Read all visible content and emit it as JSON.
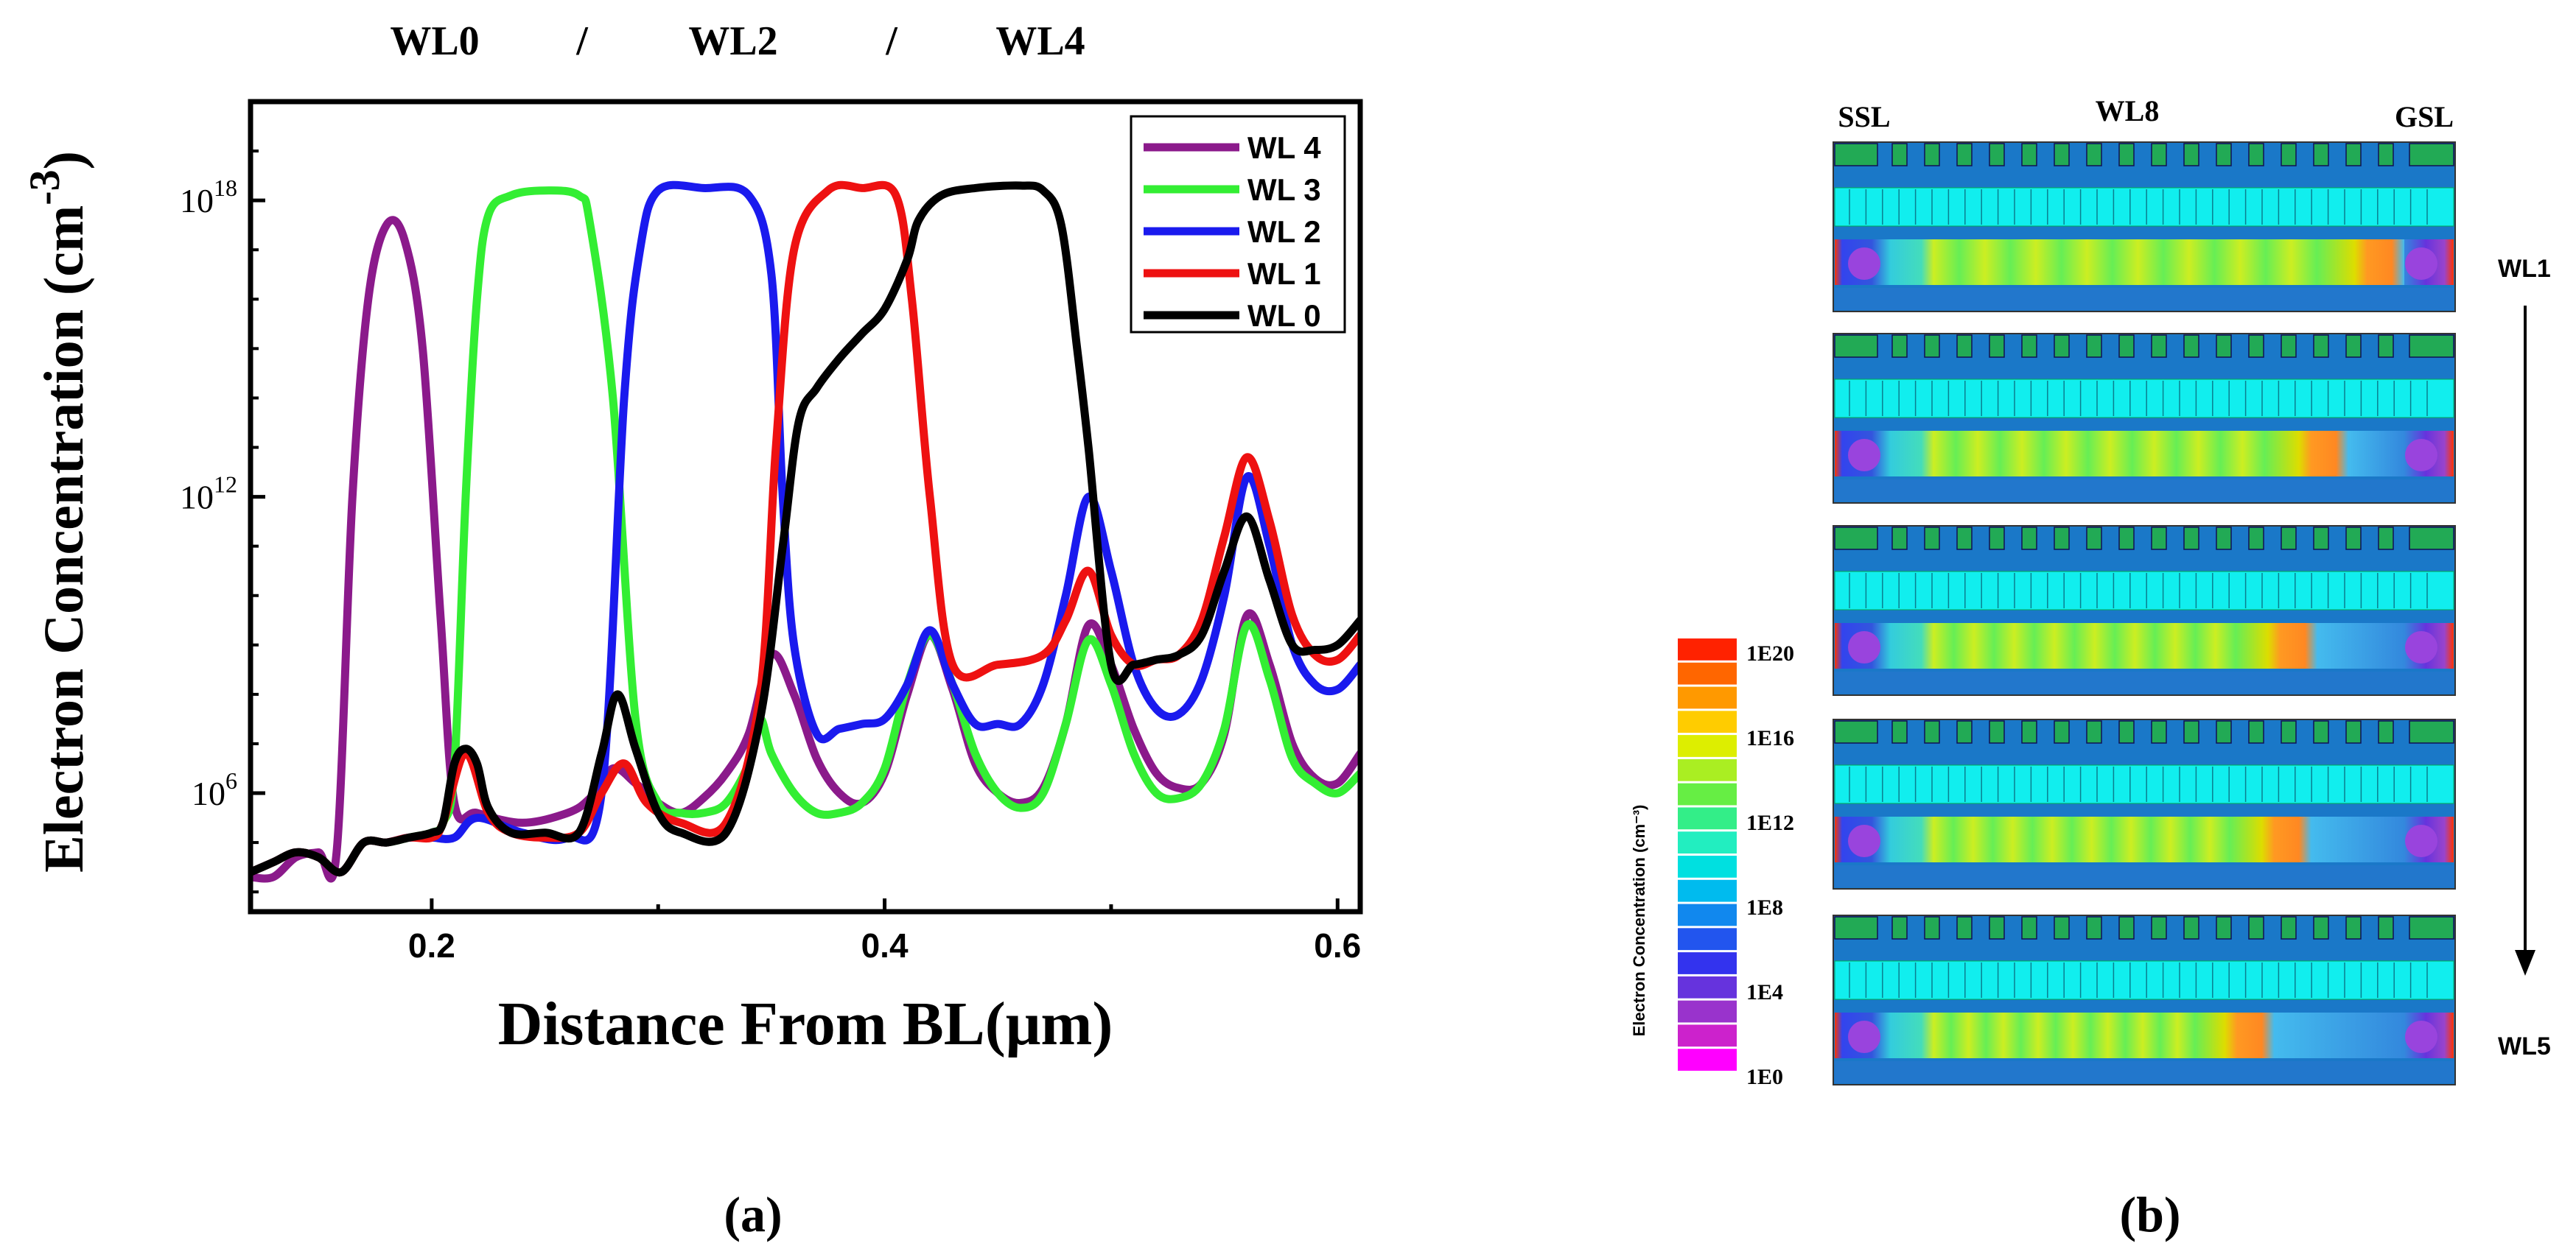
{
  "panel_a": {
    "top_labels": [
      "WL0",
      "/",
      "WL2",
      "/",
      "WL4"
    ],
    "caption": "(a)"
  },
  "panel_b": {
    "caption": "(b)",
    "labels": {
      "ssl": "SSL",
      "wl8": "WL8",
      "gsl": "GSL",
      "start": "WL1",
      "end": "WL5"
    },
    "colorbar": {
      "title": "Electron Concentration (cm⁻³)",
      "ticks": [
        "1E20",
        "1E16",
        "1E12",
        "1E8",
        "1E4",
        "1E0"
      ],
      "colors": [
        "#ff00ff",
        "#cc22cc",
        "#9933cc",
        "#6633dd",
        "#3333ee",
        "#2255ee",
        "#1188ee",
        "#00bbee",
        "#00e0e0",
        "#22eec0",
        "#33ee88",
        "#66ee44",
        "#aaee22",
        "#ddee00",
        "#ffcc00",
        "#ff9900",
        "#ff6600",
        "#ff2200"
      ]
    },
    "strip_hotspots": [
      0.86,
      0.77,
      0.72,
      0.71,
      0.65
    ]
  },
  "chart_data": {
    "type": "line",
    "title": "",
    "xlabel": "Distance From BL(μm)",
    "ylabel": "Electron Concentration (cm",
    "ylabel_exponent": "-3",
    "ylabel_close": ")",
    "xlim": [
      0.12,
      0.61
    ],
    "ylim_log10": [
      3.6,
      20.0
    ],
    "x_ticks": [
      {
        "value": 0.2,
        "label": "0.2"
      },
      {
        "value": 0.4,
        "label": "0.4"
      },
      {
        "value": 0.6,
        "label": "0.6"
      }
    ],
    "x_minor_ticks": [
      0.1,
      0.3,
      0.5
    ],
    "y_ticks": [
      {
        "value": 6,
        "label": "10",
        "exp": "6"
      },
      {
        "value": 12,
        "label": "10",
        "exp": "12"
      },
      {
        "value": 18,
        "label": "10",
        "exp": "18"
      }
    ],
    "y_minor_ticks": [
      4,
      5,
      7,
      8,
      9,
      10,
      11,
      13,
      14,
      15,
      16,
      17,
      19
    ],
    "legend_position": "top-right",
    "series": [
      {
        "name": "WL 4",
        "color": "#8b1a8b",
        "x": [
          0.12,
          0.13,
          0.14,
          0.15,
          0.158,
          0.165,
          0.172,
          0.18,
          0.188,
          0.196,
          0.204,
          0.21,
          0.22,
          0.24,
          0.26,
          0.27,
          0.28,
          0.29,
          0.3,
          0.31,
          0.32,
          0.33,
          0.34,
          0.35,
          0.36,
          0.37,
          0.38,
          0.39,
          0.4,
          0.41,
          0.42,
          0.43,
          0.44,
          0.45,
          0.46,
          0.47,
          0.48,
          0.49,
          0.5,
          0.51,
          0.52,
          0.53,
          0.54,
          0.55,
          0.56,
          0.57,
          0.58,
          0.59,
          0.6,
          0.61
        ],
        "y": [
          4.3,
          4.3,
          4.7,
          4.8,
          4.8,
          12.0,
          16.0,
          17.5,
          17.2,
          15.0,
          9.5,
          5.8,
          5.6,
          5.4,
          5.6,
          5.9,
          6.5,
          6.2,
          5.8,
          5.6,
          5.9,
          6.4,
          7.2,
          8.8,
          8.0,
          6.7,
          6.0,
          5.8,
          6.4,
          8.0,
          9.2,
          8.1,
          6.6,
          6.0,
          5.8,
          6.1,
          7.4,
          9.4,
          8.6,
          7.3,
          6.4,
          6.1,
          6.2,
          7.2,
          9.6,
          8.6,
          7.0,
          6.3,
          6.2,
          6.8
        ]
      },
      {
        "name": "WL 3",
        "color": "#33ee33",
        "x": [
          0.12,
          0.13,
          0.14,
          0.15,
          0.16,
          0.17,
          0.18,
          0.19,
          0.2,
          0.205,
          0.21,
          0.215,
          0.22,
          0.225,
          0.235,
          0.25,
          0.265,
          0.27,
          0.28,
          0.29,
          0.3,
          0.31,
          0.32,
          0.33,
          0.34,
          0.345,
          0.35,
          0.36,
          0.37,
          0.38,
          0.39,
          0.4,
          0.41,
          0.42,
          0.43,
          0.44,
          0.45,
          0.46,
          0.47,
          0.48,
          0.49,
          0.5,
          0.51,
          0.52,
          0.53,
          0.54,
          0.55,
          0.56,
          0.57,
          0.58,
          0.59,
          0.6,
          0.61
        ],
        "y": [
          4.4,
          4.6,
          4.8,
          4.7,
          4.4,
          5.0,
          5.0,
          5.1,
          5.2,
          5.4,
          6.5,
          12.0,
          16.0,
          17.7,
          18.1,
          18.2,
          18.1,
          17.5,
          14.0,
          7.5,
          5.8,
          5.6,
          5.6,
          5.8,
          6.6,
          7.5,
          6.8,
          6.0,
          5.6,
          5.6,
          5.8,
          6.5,
          8.2,
          9.2,
          8.2,
          6.8,
          6.0,
          5.7,
          6.0,
          7.4,
          9.1,
          8.2,
          6.8,
          6.0,
          5.9,
          6.2,
          7.3,
          9.4,
          8.3,
          6.7,
          6.2,
          6.0,
          6.4
        ]
      },
      {
        "name": "WL 2",
        "color": "#1a1aee",
        "x": [
          0.12,
          0.13,
          0.14,
          0.15,
          0.16,
          0.17,
          0.18,
          0.19,
          0.2,
          0.21,
          0.22,
          0.24,
          0.26,
          0.275,
          0.285,
          0.292,
          0.3,
          0.32,
          0.34,
          0.35,
          0.355,
          0.36,
          0.37,
          0.38,
          0.39,
          0.4,
          0.41,
          0.42,
          0.43,
          0.44,
          0.45,
          0.46,
          0.47,
          0.48,
          0.49,
          0.5,
          0.51,
          0.52,
          0.53,
          0.54,
          0.55,
          0.56,
          0.57,
          0.58,
          0.59,
          0.6,
          0.61
        ],
        "y": [
          4.4,
          4.6,
          4.8,
          4.7,
          4.4,
          5.0,
          5.0,
          5.1,
          5.1,
          5.1,
          5.5,
          5.2,
          5.1,
          6.0,
          14.0,
          17.0,
          18.2,
          18.25,
          18.1,
          16.5,
          12.0,
          9.0,
          7.2,
          7.3,
          7.4,
          7.5,
          8.2,
          9.3,
          8.2,
          7.4,
          7.4,
          7.4,
          8.2,
          10.0,
          12.0,
          10.5,
          8.6,
          7.7,
          7.6,
          8.3,
          10.0,
          12.4,
          11.0,
          9.0,
          8.2,
          8.1,
          8.6
        ]
      },
      {
        "name": "WL 1",
        "color": "#ee1111",
        "x": [
          0.12,
          0.13,
          0.14,
          0.15,
          0.16,
          0.17,
          0.18,
          0.19,
          0.2,
          0.205,
          0.215,
          0.225,
          0.235,
          0.25,
          0.265,
          0.275,
          0.285,
          0.295,
          0.31,
          0.33,
          0.345,
          0.352,
          0.36,
          0.375,
          0.39,
          0.405,
          0.412,
          0.42,
          0.43,
          0.45,
          0.47,
          0.48,
          0.49,
          0.5,
          0.51,
          0.52,
          0.53,
          0.54,
          0.55,
          0.56,
          0.57,
          0.58,
          0.59,
          0.6,
          0.61
        ],
        "y": [
          4.4,
          4.6,
          4.8,
          4.7,
          4.4,
          5.0,
          5.0,
          5.1,
          5.1,
          5.4,
          6.8,
          5.6,
          5.2,
          5.1,
          5.2,
          6.0,
          6.6,
          5.8,
          5.4,
          5.4,
          8.0,
          13.0,
          17.0,
          18.2,
          18.25,
          18.1,
          16.0,
          12.0,
          8.6,
          8.6,
          8.8,
          9.5,
          10.5,
          9.2,
          8.6,
          8.7,
          8.8,
          9.5,
          11.2,
          12.8,
          11.5,
          9.6,
          8.8,
          8.7,
          9.2
        ]
      },
      {
        "name": "WL 0",
        "color": "#000000",
        "x": [
          0.12,
          0.13,
          0.14,
          0.15,
          0.16,
          0.17,
          0.18,
          0.19,
          0.2,
          0.205,
          0.21,
          0.215,
          0.22,
          0.225,
          0.235,
          0.25,
          0.265,
          0.275,
          0.282,
          0.29,
          0.3,
          0.31,
          0.33,
          0.345,
          0.355,
          0.362,
          0.37,
          0.38,
          0.39,
          0.4,
          0.41,
          0.415,
          0.425,
          0.44,
          0.46,
          0.47,
          0.478,
          0.485,
          0.49,
          0.5,
          0.51,
          0.52,
          0.53,
          0.54,
          0.55,
          0.56,
          0.57,
          0.58,
          0.59,
          0.6,
          0.61
        ],
        "y": [
          4.4,
          4.6,
          4.8,
          4.7,
          4.4,
          5.0,
          5.0,
          5.1,
          5.2,
          5.4,
          6.6,
          6.9,
          6.6,
          5.7,
          5.2,
          5.2,
          5.2,
          6.8,
          8.0,
          6.9,
          5.6,
          5.2,
          5.2,
          7.5,
          11.0,
          13.5,
          14.2,
          14.8,
          15.3,
          15.8,
          16.8,
          17.6,
          18.1,
          18.25,
          18.3,
          18.2,
          17.5,
          15.0,
          13.0,
          8.6,
          8.6,
          8.7,
          8.8,
          9.2,
          10.5,
          11.6,
          10.3,
          9.0,
          8.9,
          9.0,
          9.5
        ]
      }
    ]
  }
}
